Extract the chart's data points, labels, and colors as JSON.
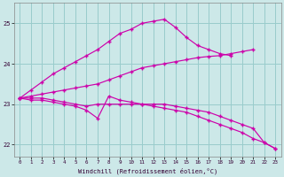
{
  "xlabel": "Windchill (Refroidissement éolien,°C)",
  "background_color": "#cce8e8",
  "grid_color": "#99cccc",
  "line_color": "#cc00aa",
  "ylim": [
    21.7,
    25.5
  ],
  "xlim": [
    -0.5,
    23.5
  ],
  "yticks": [
    22,
    23,
    24,
    25
  ],
  "xticks": [
    0,
    1,
    2,
    3,
    4,
    5,
    6,
    7,
    8,
    9,
    10,
    11,
    12,
    13,
    14,
    15,
    16,
    17,
    18,
    19,
    20,
    21,
    22,
    23
  ],
  "lines": [
    {
      "x": [
        0,
        1,
        2,
        3,
        4,
        5,
        6,
        7,
        8,
        9,
        10,
        11,
        12,
        13,
        14,
        15,
        16,
        17,
        18,
        19
      ],
      "y": [
        23.15,
        23.35,
        23.55,
        23.75,
        23.9,
        24.05,
        24.2,
        24.35,
        24.55,
        24.75,
        24.85,
        25.0,
        25.05,
        25.1,
        24.9,
        24.65,
        24.45,
        24.35,
        24.25,
        24.2
      ]
    },
    {
      "x": [
        0,
        1,
        2,
        3,
        4,
        5,
        6,
        7,
        8,
        9,
        10,
        11,
        12,
        13,
        14,
        15,
        16,
        17,
        18,
        19,
        20,
        21
      ],
      "y": [
        23.15,
        23.2,
        23.25,
        23.3,
        23.35,
        23.4,
        23.45,
        23.5,
        23.6,
        23.7,
        23.8,
        23.9,
        23.95,
        24.0,
        24.05,
        24.1,
        24.15,
        24.18,
        24.2,
        24.25,
        24.3,
        24.35
      ]
    },
    {
      "x": [
        0,
        1,
        2,
        3,
        4,
        5,
        6,
        7,
        8,
        9,
        10,
        11,
        12,
        13,
        14,
        15,
        16,
        17,
        18,
        19,
        20,
        21,
        22,
        23
      ],
      "y": [
        23.15,
        23.15,
        23.15,
        23.1,
        23.05,
        23.0,
        22.95,
        23.0,
        23.0,
        23.0,
        23.0,
        23.0,
        23.0,
        23.0,
        22.95,
        22.9,
        22.85,
        22.8,
        22.7,
        22.6,
        22.5,
        22.4,
        22.05,
        21.9
      ]
    },
    {
      "x": [
        0,
        1,
        2,
        3,
        4,
        5,
        6,
        7,
        8,
        9,
        10,
        11,
        12,
        13,
        14,
        15,
        16,
        17,
        18,
        19,
        20,
        21,
        22,
        23
      ],
      "y": [
        23.15,
        23.1,
        23.1,
        23.05,
        23.0,
        22.95,
        22.85,
        22.65,
        23.2,
        23.1,
        23.05,
        23.0,
        22.95,
        22.9,
        22.85,
        22.8,
        22.7,
        22.6,
        22.5,
        22.4,
        22.3,
        22.15,
        22.05,
        21.9
      ]
    }
  ]
}
